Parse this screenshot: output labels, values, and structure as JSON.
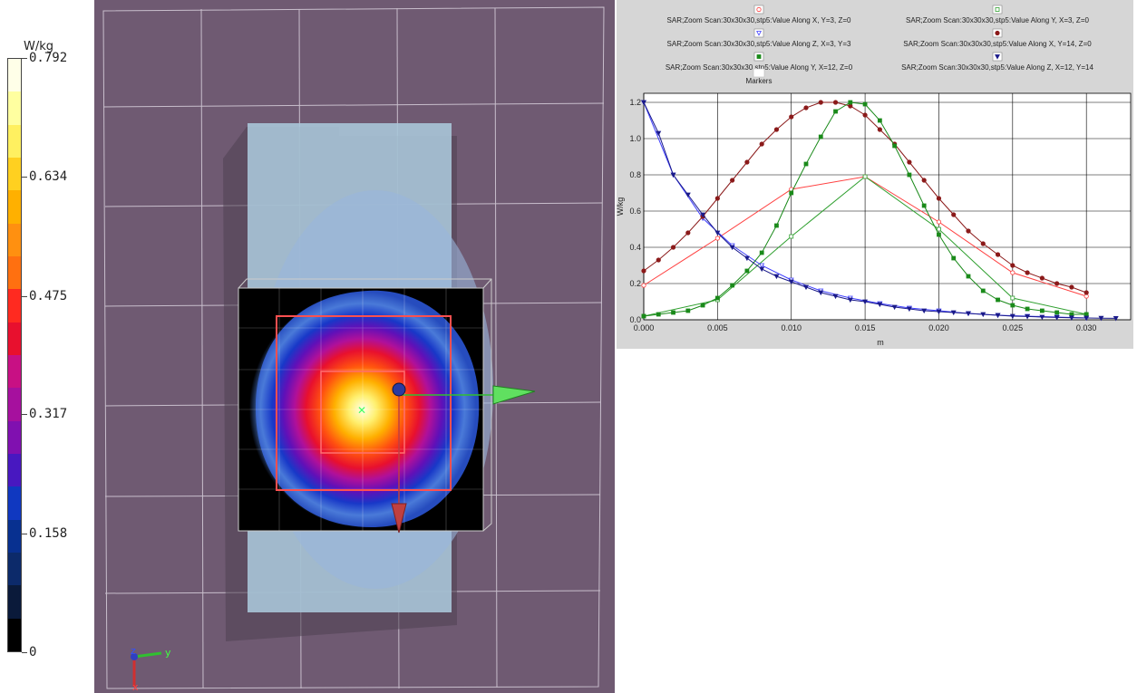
{
  "colorbar": {
    "unit": "W/kg",
    "max_value": 0.792,
    "ticks": [
      {
        "value": 0.792,
        "label": "0.792"
      },
      {
        "value": 0.634,
        "label": "0.634"
      },
      {
        "value": 0.475,
        "label": "0.475"
      },
      {
        "value": 0.317,
        "label": "0.317"
      },
      {
        "value": 0.158,
        "label": "0.158"
      },
      {
        "value": 0,
        "label": "0"
      }
    ],
    "colors_top_to_bottom": [
      "#ffffe8",
      "#ffffa0",
      "#fff060",
      "#ffd020",
      "#ffb000",
      "#ff9010",
      "#ff7010",
      "#ff2a20",
      "#e8102e",
      "#c81084",
      "#a6109e",
      "#8010b0",
      "#4818c0",
      "#1038c0",
      "#083090",
      "#0c2a6a",
      "#0a1a3a",
      "#000000"
    ]
  },
  "viewport": {
    "axes_triad": {
      "z_label": "z",
      "y_label": "y",
      "x_label": "x"
    }
  },
  "chart_data": {
    "type": "line",
    "xlabel": "m",
    "ylabel": "W/kg",
    "xlim": [
      0,
      0.033
    ],
    "ylim": [
      0,
      1.25
    ],
    "xticks": [
      0.0,
      0.005,
      0.01,
      0.015,
      0.02,
      0.025,
      0.03
    ],
    "xtick_labels": [
      "0.000",
      "0.005",
      "0.010",
      "0.015",
      "0.020",
      "0.025",
      "0.030"
    ],
    "yticks": [
      0.0,
      0.2,
      0.4,
      0.6,
      0.8,
      1.0,
      1.2
    ],
    "ytick_labels": [
      "0.0",
      "0.2",
      "0.4",
      "0.6",
      "0.8",
      "1.0",
      "1.2"
    ],
    "grid": true,
    "legend_title": "Markers",
    "series": [
      {
        "name": "SAR;Zoom Scan:30x30x30,stp5:Value Along X, Y=3, Z=0",
        "color": "#ff4040",
        "marker": "open-circle",
        "x": [
          0.0,
          0.005,
          0.01,
          0.015,
          0.02,
          0.025,
          0.03
        ],
        "y": [
          0.19,
          0.45,
          0.72,
          0.79,
          0.54,
          0.26,
          0.13
        ]
      },
      {
        "name": "SAR;Zoom Scan:30x30x30,stp5:Value Along Y, X=3, Z=0",
        "color": "#30a030",
        "marker": "open-square",
        "x": [
          0.0,
          0.005,
          0.01,
          0.015,
          0.02,
          0.025,
          0.03
        ],
        "y": [
          0.02,
          0.11,
          0.46,
          0.79,
          0.5,
          0.12,
          0.03
        ]
      },
      {
        "name": "SAR;Zoom Scan:30x30x30,stp5:Value Along Z, X=3, Y=3",
        "color": "#4040ff",
        "marker": "open-triangle",
        "x": [
          0.0,
          0.002,
          0.004,
          0.006,
          0.008,
          0.01,
          0.012,
          0.014,
          0.016,
          0.018,
          0.02,
          0.022,
          0.024,
          0.026,
          0.028,
          0.03
        ],
        "y": [
          1.2,
          0.8,
          0.56,
          0.41,
          0.3,
          0.22,
          0.16,
          0.12,
          0.09,
          0.065,
          0.05,
          0.035,
          0.025,
          0.02,
          0.015,
          0.01
        ]
      },
      {
        "name": "SAR;Zoom Scan:30x30x30,stp5:Value Along X, Y=14, Z=0",
        "color": "#8b1a1a",
        "marker": "filled-circle",
        "x": [
          0.0,
          0.001,
          0.002,
          0.003,
          0.004,
          0.005,
          0.006,
          0.007,
          0.008,
          0.009,
          0.01,
          0.011,
          0.012,
          0.013,
          0.014,
          0.015,
          0.016,
          0.017,
          0.018,
          0.019,
          0.02,
          0.021,
          0.022,
          0.023,
          0.024,
          0.025,
          0.026,
          0.027,
          0.028,
          0.029,
          0.03
        ],
        "y": [
          0.27,
          0.33,
          0.4,
          0.48,
          0.57,
          0.67,
          0.77,
          0.87,
          0.97,
          1.05,
          1.12,
          1.17,
          1.2,
          1.2,
          1.18,
          1.13,
          1.05,
          0.97,
          0.87,
          0.77,
          0.67,
          0.58,
          0.49,
          0.42,
          0.36,
          0.3,
          0.26,
          0.23,
          0.2,
          0.18,
          0.15
        ]
      },
      {
        "name": "SAR;Zoom Scan:30x30x30,stp5:Value Along Y, X=12, Z=0",
        "color": "#1a8a1a",
        "marker": "filled-square",
        "x": [
          0.0,
          0.001,
          0.002,
          0.003,
          0.004,
          0.005,
          0.006,
          0.007,
          0.008,
          0.009,
          0.01,
          0.011,
          0.012,
          0.013,
          0.014,
          0.015,
          0.016,
          0.017,
          0.018,
          0.019,
          0.02,
          0.021,
          0.022,
          0.023,
          0.024,
          0.025,
          0.026,
          0.027,
          0.028,
          0.029,
          0.03
        ],
        "y": [
          0.02,
          0.03,
          0.04,
          0.05,
          0.08,
          0.12,
          0.19,
          0.27,
          0.37,
          0.52,
          0.7,
          0.86,
          1.01,
          1.15,
          1.2,
          1.19,
          1.1,
          0.96,
          0.8,
          0.63,
          0.47,
          0.34,
          0.24,
          0.16,
          0.11,
          0.08,
          0.06,
          0.05,
          0.04,
          0.03,
          0.03
        ]
      },
      {
        "name": "SAR;Zoom Scan:30x30x30,stp5:Value Along Z, X=12, Y=14",
        "color": "#1a1a8a",
        "marker": "filled-triangle",
        "x": [
          0.0,
          0.001,
          0.002,
          0.003,
          0.004,
          0.005,
          0.006,
          0.007,
          0.008,
          0.009,
          0.01,
          0.011,
          0.012,
          0.013,
          0.014,
          0.015,
          0.016,
          0.017,
          0.018,
          0.019,
          0.02,
          0.021,
          0.022,
          0.023,
          0.024,
          0.025,
          0.026,
          0.027,
          0.028,
          0.029,
          0.03,
          0.031,
          0.032
        ],
        "y": [
          1.2,
          1.03,
          0.8,
          0.69,
          0.58,
          0.48,
          0.4,
          0.34,
          0.28,
          0.24,
          0.21,
          0.18,
          0.15,
          0.13,
          0.11,
          0.1,
          0.085,
          0.07,
          0.06,
          0.05,
          0.045,
          0.04,
          0.035,
          0.03,
          0.025,
          0.02,
          0.018,
          0.015,
          0.013,
          0.011,
          0.01,
          0.009,
          0.008
        ]
      }
    ]
  }
}
